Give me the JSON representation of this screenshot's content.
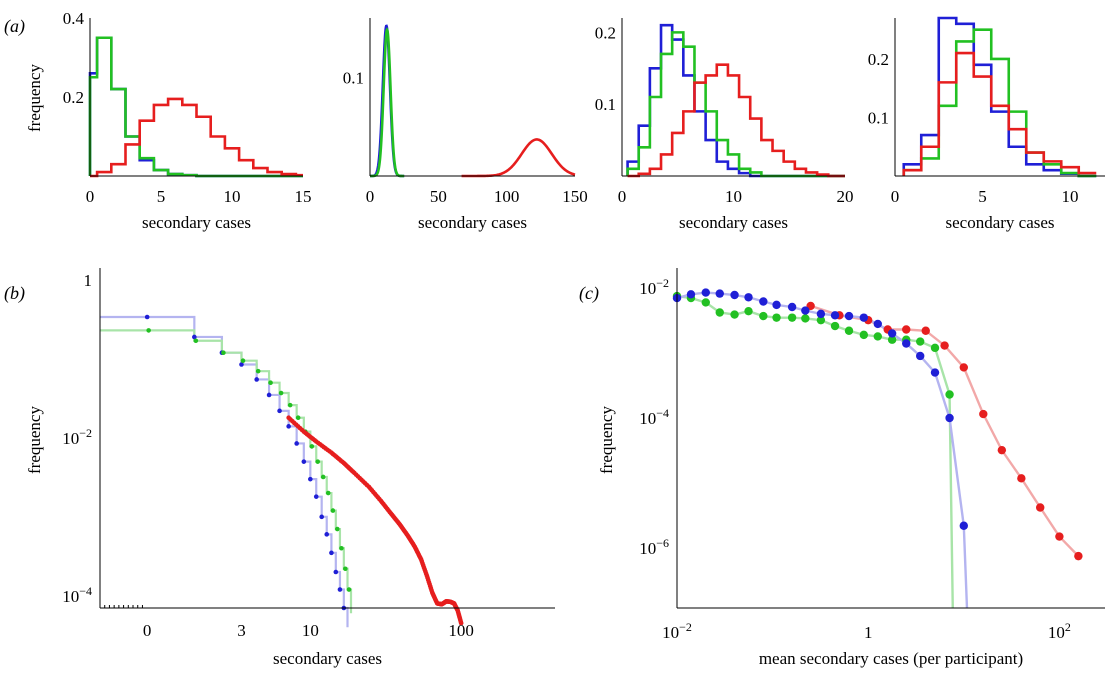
{
  "panel_labels": [
    "(a)",
    "(b)",
    "(c)"
  ],
  "colors": {
    "blue": "#1f1fd6",
    "green": "#22c022",
    "red": "#e61e1e",
    "blue_light": "#b4b4f0",
    "green_light": "#a8e4a8",
    "red_light": "#f2a8a8"
  },
  "chart_data": [
    {
      "type": "bar",
      "panel": "a1",
      "histogram": true,
      "xlabel": "secondary cases",
      "ylabel": "frequency",
      "xlim": [
        0,
        15
      ],
      "ylim": [
        0,
        0.4
      ],
      "xticks": [
        "0",
        "5",
        "10",
        "15"
      ],
      "yticks": [
        "0.2",
        "0.4"
      ],
      "x": [
        0,
        1,
        2,
        3,
        4,
        5,
        6,
        7,
        8,
        9,
        10,
        11,
        12,
        13,
        14,
        15
      ],
      "series": [
        {
          "color": "blue",
          "values": [
            0.26,
            0.35,
            0.22,
            0.1,
            0.04,
            0.015,
            0.005,
            0.002,
            0,
            0,
            0,
            0,
            0,
            0,
            0,
            0
          ]
        },
        {
          "color": "green",
          "values": [
            0.25,
            0.35,
            0.22,
            0.1,
            0.045,
            0.015,
            0.005,
            0.002,
            0,
            0,
            0,
            0,
            0,
            0,
            0,
            0
          ]
        },
        {
          "color": "red",
          "values": [
            0,
            0.01,
            0.03,
            0.08,
            0.14,
            0.18,
            0.195,
            0.18,
            0.15,
            0.1,
            0.07,
            0.04,
            0.02,
            0.01,
            0.005,
            0.002
          ]
        }
      ]
    },
    {
      "type": "line",
      "panel": "a2",
      "xlabel": "secondary cases",
      "xlim": [
        0,
        150
      ],
      "ylim": [
        0,
        0.16
      ],
      "xticks": [
        "0",
        "50",
        "100",
        "150"
      ],
      "yticks": [
        "0.1"
      ],
      "series": [
        {
          "color": "blue",
          "shape": "gaussian",
          "mean": 12,
          "sd": 2.6,
          "peak": 0.152
        },
        {
          "color": "green",
          "shape": "gaussian",
          "mean": 12.5,
          "sd": 2.5,
          "peak": 0.148
        },
        {
          "color": "red",
          "shape": "gaussian",
          "mean": 122,
          "sd": 11,
          "peak": 0.037
        }
      ]
    },
    {
      "type": "bar",
      "panel": "a3",
      "histogram": true,
      "xlabel": "secondary cases",
      "xlim": [
        0,
        20
      ],
      "ylim": [
        0,
        0.22
      ],
      "xticks": [
        "0",
        "10",
        "20"
      ],
      "yticks": [
        "0.1",
        "0.2"
      ],
      "x": [
        1,
        2,
        3,
        4,
        5,
        6,
        7,
        8,
        9,
        10,
        11,
        12,
        13,
        14,
        15,
        16,
        17,
        18,
        19,
        20
      ],
      "series": [
        {
          "color": "blue",
          "values": [
            0.02,
            0.07,
            0.15,
            0.21,
            0.19,
            0.14,
            0.09,
            0.05,
            0.02,
            0.01,
            0.004,
            0,
            0,
            0,
            0,
            0,
            0,
            0,
            0,
            0
          ]
        },
        {
          "color": "green",
          "values": [
            0.01,
            0.04,
            0.11,
            0.17,
            0.2,
            0.18,
            0.13,
            0.09,
            0.05,
            0.03,
            0.01,
            0.005,
            0,
            0,
            0,
            0,
            0,
            0,
            0,
            0
          ]
        },
        {
          "color": "red",
          "values": [
            0,
            0.003,
            0.01,
            0.03,
            0.06,
            0.09,
            0.13,
            0.14,
            0.155,
            0.14,
            0.11,
            0.08,
            0.05,
            0.035,
            0.02,
            0.01,
            0.005,
            0.002,
            0,
            0
          ]
        }
      ]
    },
    {
      "type": "bar",
      "panel": "a4",
      "histogram": true,
      "xlabel": "secondary cases",
      "xlim": [
        0,
        12
      ],
      "ylim": [
        0,
        0.27
      ],
      "xticks": [
        "0",
        "5",
        "10"
      ],
      "yticks": [
        "0.1",
        "0.2"
      ],
      "x": [
        1,
        2,
        3,
        4,
        5,
        6,
        7,
        8,
        9,
        10,
        11
      ],
      "series": [
        {
          "color": "blue",
          "values": [
            0.02,
            0.07,
            0.27,
            0.26,
            0.19,
            0.11,
            0.05,
            0.02,
            0.01,
            0.004,
            0
          ]
        },
        {
          "color": "green",
          "values": [
            0.01,
            0.03,
            0.12,
            0.23,
            0.25,
            0.2,
            0.11,
            0.04,
            0.02,
            0.005,
            0
          ]
        },
        {
          "color": "red",
          "values": [
            0.01,
            0.05,
            0.16,
            0.21,
            0.17,
            0.12,
            0.08,
            0.04,
            0.025,
            0.015,
            0.005
          ]
        }
      ]
    },
    {
      "type": "scatter",
      "panel": "b",
      "xlabel": "secondary cases",
      "ylabel": "frequency",
      "xscale": "log(1+x)",
      "yscale": "log",
      "xlim": [
        -0.5,
        400
      ],
      "ylim": [
        7e-05,
        1
      ],
      "xticks": [
        "0",
        "3",
        "10",
        "100"
      ],
      "yticks": [
        {
          "base": "1",
          "exp": ""
        },
        {
          "base": "10",
          "exp": "−2"
        },
        {
          "base": "10",
          "exp": "−4"
        }
      ],
      "step_series": [
        {
          "color": "blue_light",
          "x": [
            -0.5,
            0,
            1,
            2,
            3,
            4,
            5,
            6,
            7,
            8,
            9,
            10,
            11,
            12,
            13,
            14,
            15,
            16,
            17,
            18
          ],
          "y": [
            0.34,
            0.34,
            0.19,
            0.12,
            0.085,
            0.055,
            0.035,
            0.022,
            0.014,
            0.0085,
            0.005,
            0.003,
            0.0018,
            0.001,
            0.0006,
            0.00035,
            0.0002,
            0.00012,
            7e-05,
            4e-05
          ]
        },
        {
          "color": "green_light",
          "x": [
            -0.5,
            0,
            1,
            2,
            3,
            4,
            5,
            6,
            7,
            8,
            9,
            10,
            11,
            12,
            13,
            14,
            15,
            16,
            17,
            18,
            19
          ],
          "y": [
            0.23,
            0.23,
            0.17,
            0.12,
            0.095,
            0.07,
            0.05,
            0.037,
            0.026,
            0.018,
            0.012,
            0.0078,
            0.005,
            0.0032,
            0.002,
            0.0012,
            0.0007,
            0.0004,
            0.00022,
            0.00012,
            6e-05
          ]
        }
      ],
      "series": [
        {
          "color": "blue",
          "x": [
            0,
            1,
            2,
            3,
            4,
            5,
            6,
            7,
            8,
            9,
            10,
            11,
            12,
            13,
            14,
            15,
            16,
            17
          ],
          "y": [
            0.34,
            0.19,
            0.12,
            0.085,
            0.055,
            0.035,
            0.022,
            0.014,
            0.0085,
            0.005,
            0.003,
            0.0018,
            0.001,
            0.0006,
            0.00035,
            0.0002,
            0.00012,
            7e-05
          ]
        },
        {
          "color": "green",
          "x": [
            0,
            1,
            2,
            3,
            4,
            5,
            6,
            7,
            8,
            9,
            10,
            11,
            12,
            13,
            14,
            15,
            16,
            17,
            18
          ],
          "y": [
            0.23,
            0.17,
            0.12,
            0.095,
            0.07,
            0.05,
            0.037,
            0.026,
            0.018,
            0.012,
            0.0078,
            0.005,
            0.0032,
            0.002,
            0.0012,
            0.0007,
            0.0004,
            0.00022,
            0.00012
          ]
        },
        {
          "color": "red",
          "shape": "curve",
          "x": [
            7,
            9,
            11,
            14,
            17,
            20,
            25,
            30,
            35,
            40,
            45,
            50,
            55,
            60,
            65,
            70,
            75,
            80,
            85,
            90,
            95,
            100
          ],
          "y": [
            0.018,
            0.012,
            0.009,
            0.0065,
            0.0048,
            0.0036,
            0.0024,
            0.0016,
            0.0011,
            0.0008,
            0.00058,
            0.00042,
            0.00029,
            0.00018,
            0.00011,
            8e-05,
            7.8e-05,
            8.5e-05,
            8.4e-05,
            8e-05,
            6.5e-05,
            4.5e-05
          ]
        }
      ]
    },
    {
      "type": "line",
      "panel": "c",
      "xlabel": "mean secondary cases (per participant)",
      "ylabel": "frequency",
      "xscale": "log",
      "yscale": "log",
      "xlim": [
        0.01,
        300
      ],
      "ylim": [
        1e-07,
        0.02
      ],
      "xticks": [
        {
          "base": "10",
          "exp": "−2"
        },
        {
          "base": "1",
          "exp": ""
        },
        {
          "base": "10",
          "exp": "2"
        }
      ],
      "yticks": [
        {
          "base": "10",
          "exp": "−2"
        },
        {
          "base": "10",
          "exp": "−4"
        },
        {
          "base": "10",
          "exp": "−6"
        }
      ],
      "series": [
        {
          "color": "blue",
          "x": [
            0.01,
            0.014,
            0.02,
            0.028,
            0.04,
            0.056,
            0.08,
            0.11,
            0.16,
            0.22,
            0.32,
            0.45,
            0.63,
            0.9,
            1.26,
            1.78,
            2.5,
            3.5,
            5,
            7.1,
            10
          ],
          "y": [
            0.007,
            0.008,
            0.0085,
            0.0082,
            0.0078,
            0.0072,
            0.0062,
            0.0055,
            0.0051,
            0.0045,
            0.004,
            0.0038,
            0.0037,
            0.0035,
            0.0028,
            0.002,
            0.0014,
            0.0009,
            0.0005,
            0.0001,
            2.2e-06
          ]
        },
        {
          "color": "green",
          "x": [
            0.01,
            0.014,
            0.02,
            0.028,
            0.04,
            0.056,
            0.08,
            0.11,
            0.16,
            0.22,
            0.32,
            0.45,
            0.63,
            0.9,
            1.26,
            1.78,
            2.5,
            3.5,
            5,
            7.1
          ],
          "y": [
            0.0075,
            0.007,
            0.006,
            0.0042,
            0.0039,
            0.0044,
            0.0037,
            0.0035,
            0.0035,
            0.0034,
            0.0032,
            0.0026,
            0.0022,
            0.0019,
            0.0018,
            0.0016,
            0.0016,
            0.0015,
            0.0012,
            0.00023
          ]
        },
        {
          "color": "red",
          "x": [
            0.25,
            0.5,
            1,
            1.6,
            2.5,
            4,
            6.3,
            10,
            16,
            25,
            40,
            63,
            100,
            158
          ],
          "y": [
            0.0053,
            0.0038,
            0.0032,
            0.0023,
            0.0023,
            0.0022,
            0.0013,
            0.0006,
            0.000115,
            3.2e-05,
            1.18e-05,
            4.2e-06,
            1.5e-06,
            7.5e-07
          ]
        }
      ]
    }
  ]
}
